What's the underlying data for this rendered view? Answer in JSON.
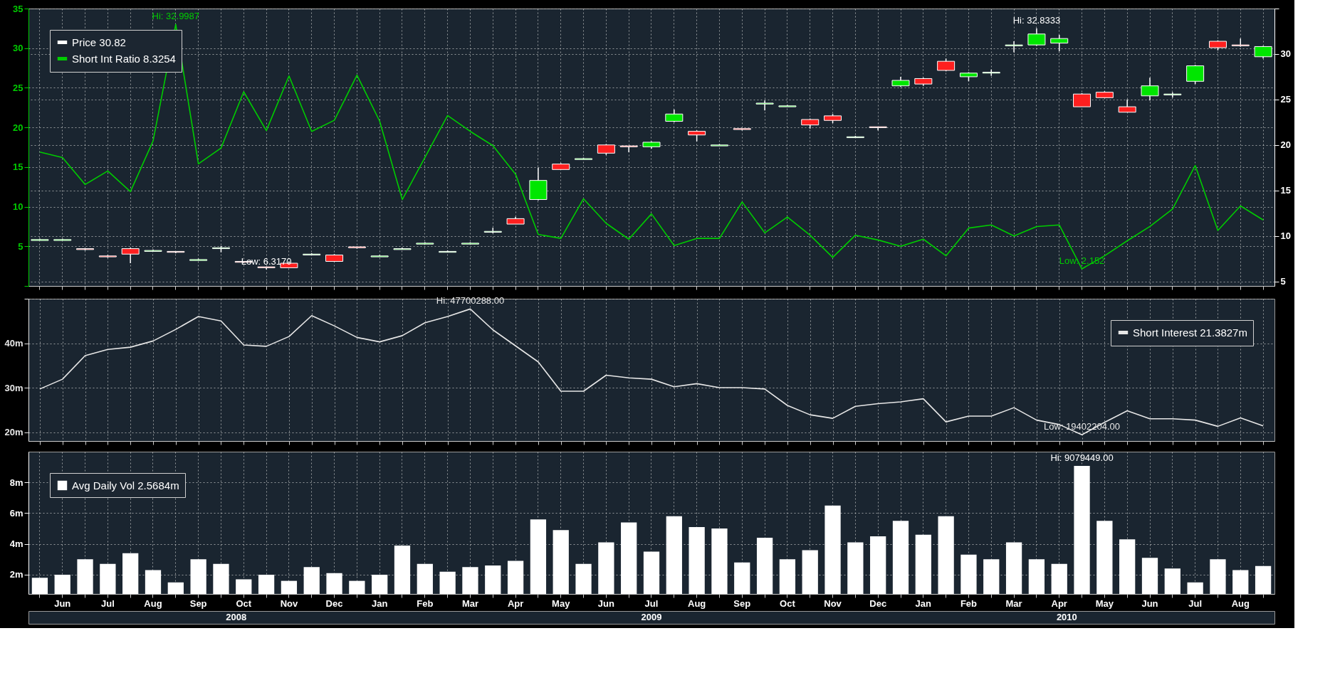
{
  "chart_data": [
    {
      "type": "candlestick",
      "categories": [
        null,
        null,
        null,
        null,
        null,
        null,
        null,
        null,
        null,
        null,
        null,
        null,
        null,
        null,
        null,
        null,
        null,
        null,
        null,
        null,
        null,
        null,
        null,
        null,
        null,
        null,
        null,
        null,
        null,
        null,
        null,
        null,
        null,
        null,
        null,
        null,
        null,
        null,
        null,
        null,
        null,
        null,
        null,
        null,
        null,
        null,
        null,
        null,
        null,
        null,
        null,
        null,
        null,
        null,
        null
      ],
      "ylim": [
        0,
        35
      ],
      "yticks": [
        {
          "value": 0,
          "label": null
        },
        5,
        10,
        15,
        20,
        25,
        30,
        35
      ],
      "y2lim": [
        4.5,
        35
      ],
      "y2ticks": [
        5,
        10,
        15,
        20,
        25,
        30,
        {
          "value": 35,
          "label": null
        }
      ],
      "grid": true,
      "legend": "top left",
      "tick_labels": "y",
      "series": [
        {
          "name": "Price 30.82",
          "type": "candlestick",
          "axis": "y2",
          "color": "#ffffff",
          "ohlc": [
            [
              9.5,
              9.7,
              9.5,
              9.6
            ],
            [
              9.5,
              9.7,
              9.5,
              9.6
            ],
            [
              8.6,
              8.6,
              8.4,
              8.5
            ],
            [
              7.8,
              7.9,
              7.6,
              7.7
            ],
            [
              8.6,
              8.7,
              7.0,
              8.0
            ],
            [
              8.3,
              8.5,
              8.3,
              8.4
            ],
            [
              8.3,
              8.3,
              8.1,
              8.2
            ],
            [
              7.3,
              7.5,
              7.3,
              7.4
            ],
            [
              8.6,
              8.9,
              8.2,
              8.7
            ],
            [
              7.2,
              7.2,
              7.0,
              7.1
            ],
            [
              6.6,
              6.6,
              6.317,
              6.5
            ],
            [
              7.0,
              7.2,
              6.5,
              6.5
            ],
            [
              7.9,
              8.1,
              7.9,
              8.0
            ],
            [
              7.9,
              8.0,
              7.2,
              7.2
            ],
            [
              8.8,
              8.8,
              8.6,
              8.7
            ],
            [
              7.7,
              7.9,
              7.7,
              7.8
            ],
            [
              8.5,
              8.7,
              8.5,
              8.6
            ],
            [
              9.1,
              9.3,
              9.1,
              9.2
            ],
            [
              8.2,
              8.4,
              8.2,
              8.3
            ],
            [
              9.1,
              9.3,
              9.1,
              9.2
            ],
            [
              10.4,
              10.9,
              10.3,
              10.5
            ],
            [
              11.9,
              12.1,
              11.3,
              11.3
            ],
            [
              14.0,
              17.5,
              13.9,
              16.1
            ],
            [
              17.9,
              18.0,
              17.3,
              17.3
            ],
            [
              18.4,
              18.6,
              18.4,
              18.5
            ],
            [
              20.0,
              20.1,
              18.9,
              19.1
            ],
            [
              19.9,
              19.9,
              19.2,
              19.8
            ],
            [
              19.8,
              20.4,
              19.6,
              20.3
            ],
            [
              22.6,
              23.9,
              22.5,
              23.4
            ],
            [
              21.5,
              21.6,
              20.4,
              21.1
            ],
            [
              19.9,
              20.1,
              19.9,
              20.0
            ],
            [
              21.8,
              21.8,
              21.6,
              21.7
            ],
            [
              24.5,
              24.9,
              23.8,
              24.6
            ],
            [
              24.2,
              24.4,
              24.2,
              24.3
            ],
            [
              22.8,
              22.9,
              21.8,
              22.2
            ],
            [
              23.2,
              23.4,
              22.4,
              22.7
            ],
            [
              20.8,
              21.0,
              20.8,
              20.9
            ],
            [
              22.0,
              22.0,
              21.6,
              21.9
            ],
            [
              26.5,
              27.5,
              26.4,
              27.1
            ],
            [
              27.3,
              27.4,
              26.5,
              26.7
            ],
            [
              29.2,
              29.5,
              28.1,
              28.2
            ],
            [
              27.5,
              28.0,
              27.0,
              27.9
            ],
            [
              27.9,
              28.3,
              27.6,
              28.0
            ],
            [
              30.9,
              31.4,
              30.2,
              31.0
            ],
            [
              31.0,
              32.8333,
              30.9,
              32.2
            ],
            [
              31.2,
              32.1,
              30.3,
              31.7
            ],
            [
              25.6,
              25.7,
              24.2,
              24.2
            ],
            [
              25.8,
              25.9,
              25.2,
              25.2
            ],
            [
              24.2,
              25.0,
              23.6,
              23.6
            ],
            [
              25.4,
              27.4,
              24.9,
              26.5
            ],
            [
              25.5,
              25.8,
              25.2,
              25.6
            ],
            [
              27.0,
              28.8,
              26.7,
              28.7
            ],
            [
              31.4,
              31.5,
              30.4,
              30.7
            ],
            [
              31.0,
              31.7,
              30.8,
              30.9
            ],
            [
              29.7,
              30.9,
              29.5,
              30.82
            ]
          ]
        },
        {
          "name": "Short Int Ratio 8.3254",
          "type": "line",
          "color": "#00cc00",
          "values": [
            16.9,
            16.2,
            12.8,
            14.5,
            11.9,
            18.3,
            32.9987,
            15.4,
            17.4,
            24.5,
            19.6,
            26.5,
            19.5,
            20.9,
            26.6,
            20.8,
            10.9,
            16.2,
            21.5,
            19.5,
            17.7,
            14.1,
            6.5,
            6.0,
            11.0,
            7.9,
            5.9,
            9.1,
            5.1,
            6.0,
            6.0,
            10.6,
            6.7,
            8.7,
            6.4,
            3.6,
            6.4,
            5.8,
            5.0,
            5.9,
            3.8,
            7.3,
            7.7,
            6.3,
            7.5,
            7.7,
            2.152,
            3.8,
            5.7,
            7.5,
            9.7,
            15.2,
            7.0,
            10.1,
            8.3254
          ]
        }
      ],
      "annotations": [
        {
          "text": "Hi: 32.8333",
          "y": 32.8333
        },
        "Low: 6.3170",
        {
          "text": "Hi: 32.9987",
          "y": 32.9987
        },
        {
          "text": "Low: 2.152",
          "y": 2.152
        }
      ]
    },
    {
      "type": "line",
      "categories": [
        null,
        null,
        null,
        null,
        null,
        null,
        null,
        null,
        null,
        null,
        null,
        null,
        null,
        null,
        null,
        null,
        null,
        null,
        null,
        null,
        null,
        null,
        null,
        null,
        null,
        null,
        null,
        null,
        null,
        null,
        null,
        null,
        null,
        null,
        null,
        null,
        null,
        null,
        null,
        null,
        null,
        null,
        null,
        null,
        null,
        null,
        null,
        null,
        null,
        null,
        null,
        null,
        null,
        null,
        null
      ],
      "ylim": [
        18,
        50
      ],
      "yticks": [
        {
          "value": 20,
          "label": "20m"
        },
        {
          "value": 30,
          "label": "30m"
        },
        {
          "value": 40,
          "label": "40m"
        },
        {
          "value": 50,
          "label": null
        }
      ],
      "grid": true,
      "legend": "top right",
      "tick_labels": "y",
      "series": [
        {
          "name": "Short Interest 21.3827m",
          "color": "#e6e6e6",
          "values": [
            29.7,
            31.9,
            37.2,
            38.6,
            39.1,
            40.5,
            43.1,
            46.0,
            45.0,
            39.6,
            39.3,
            41.5,
            46.2,
            43.9,
            41.3,
            40.3,
            41.7,
            44.6,
            46.0,
            47.700288,
            43.0,
            39.4,
            35.8,
            29.2,
            29.2,
            32.8,
            32.2,
            31.9,
            30.2,
            30.9,
            30.0,
            30.0,
            29.7,
            26.0,
            23.9,
            23.1,
            25.8,
            26.4,
            26.8,
            27.5,
            22.3,
            23.6,
            23.6,
            25.5,
            22.7,
            21.7,
            19.402204,
            22.2,
            24.8,
            23.0,
            23.0,
            22.7,
            21.3,
            23.2,
            21.3827
          ]
        }
      ],
      "annotations": [
        {
          "text": "Hi: 47700288.00",
          "y": 47.700288
        },
        {
          "text": "Low: 19402204.00",
          "y": 19.402204
        }
      ]
    },
    {
      "type": "bar",
      "categories": [
        null,
        "Jun",
        null,
        "Jul",
        null,
        "Aug",
        null,
        "Sep",
        null,
        "Oct",
        null,
        "Nov",
        null,
        "Dec",
        null,
        "Jan",
        null,
        "Feb",
        null,
        "Mar",
        null,
        "Apr",
        null,
        "May",
        null,
        "Jun",
        null,
        "Jul",
        null,
        "Aug",
        null,
        "Sep",
        null,
        "Oct",
        null,
        "Nov",
        null,
        "Dec",
        null,
        "Jan",
        null,
        "Feb",
        null,
        "Mar",
        null,
        "Apr",
        null,
        "May",
        null,
        "Jun",
        null,
        "Jul",
        null,
        "Aug",
        null
      ],
      "ylim": [
        0.75,
        10
      ],
      "yticks": [
        {
          "value": 2,
          "label": "2m"
        },
        {
          "value": 4,
          "label": "4m"
        },
        {
          "value": 6,
          "label": "6m"
        },
        {
          "value": 8,
          "label": "8m"
        }
      ],
      "grid": true,
      "legend": "top left",
      "series": [
        {
          "name": "Avg Daily Vol 2.5684m",
          "color": "#ffffff",
          "values": [
            1.8,
            2.0,
            3.0,
            2.7,
            3.4,
            2.3,
            1.5,
            3.0,
            2.7,
            1.7,
            2.0,
            1.6,
            2.5,
            2.1,
            1.6,
            2.0,
            3.9,
            2.7,
            2.2,
            2.5,
            2.6,
            2.9,
            5.6,
            4.9,
            2.7,
            4.1,
            5.4,
            3.5,
            5.8,
            5.1,
            5.0,
            2.8,
            4.4,
            3.0,
            3.6,
            6.5,
            4.1,
            4.5,
            5.5,
            4.6,
            5.8,
            3.3,
            3.0,
            4.1,
            3.0,
            2.7,
            9.079449,
            5.5,
            4.3,
            3.1,
            2.4,
            1.5,
            3.0,
            2.3,
            2.5684
          ]
        }
      ],
      "annotations": [
        {
          "text": "Hi: 9079449.00",
          "y": 9.079449
        },
        "2008",
        "2009",
        "2010"
      ]
    }
  ]
}
